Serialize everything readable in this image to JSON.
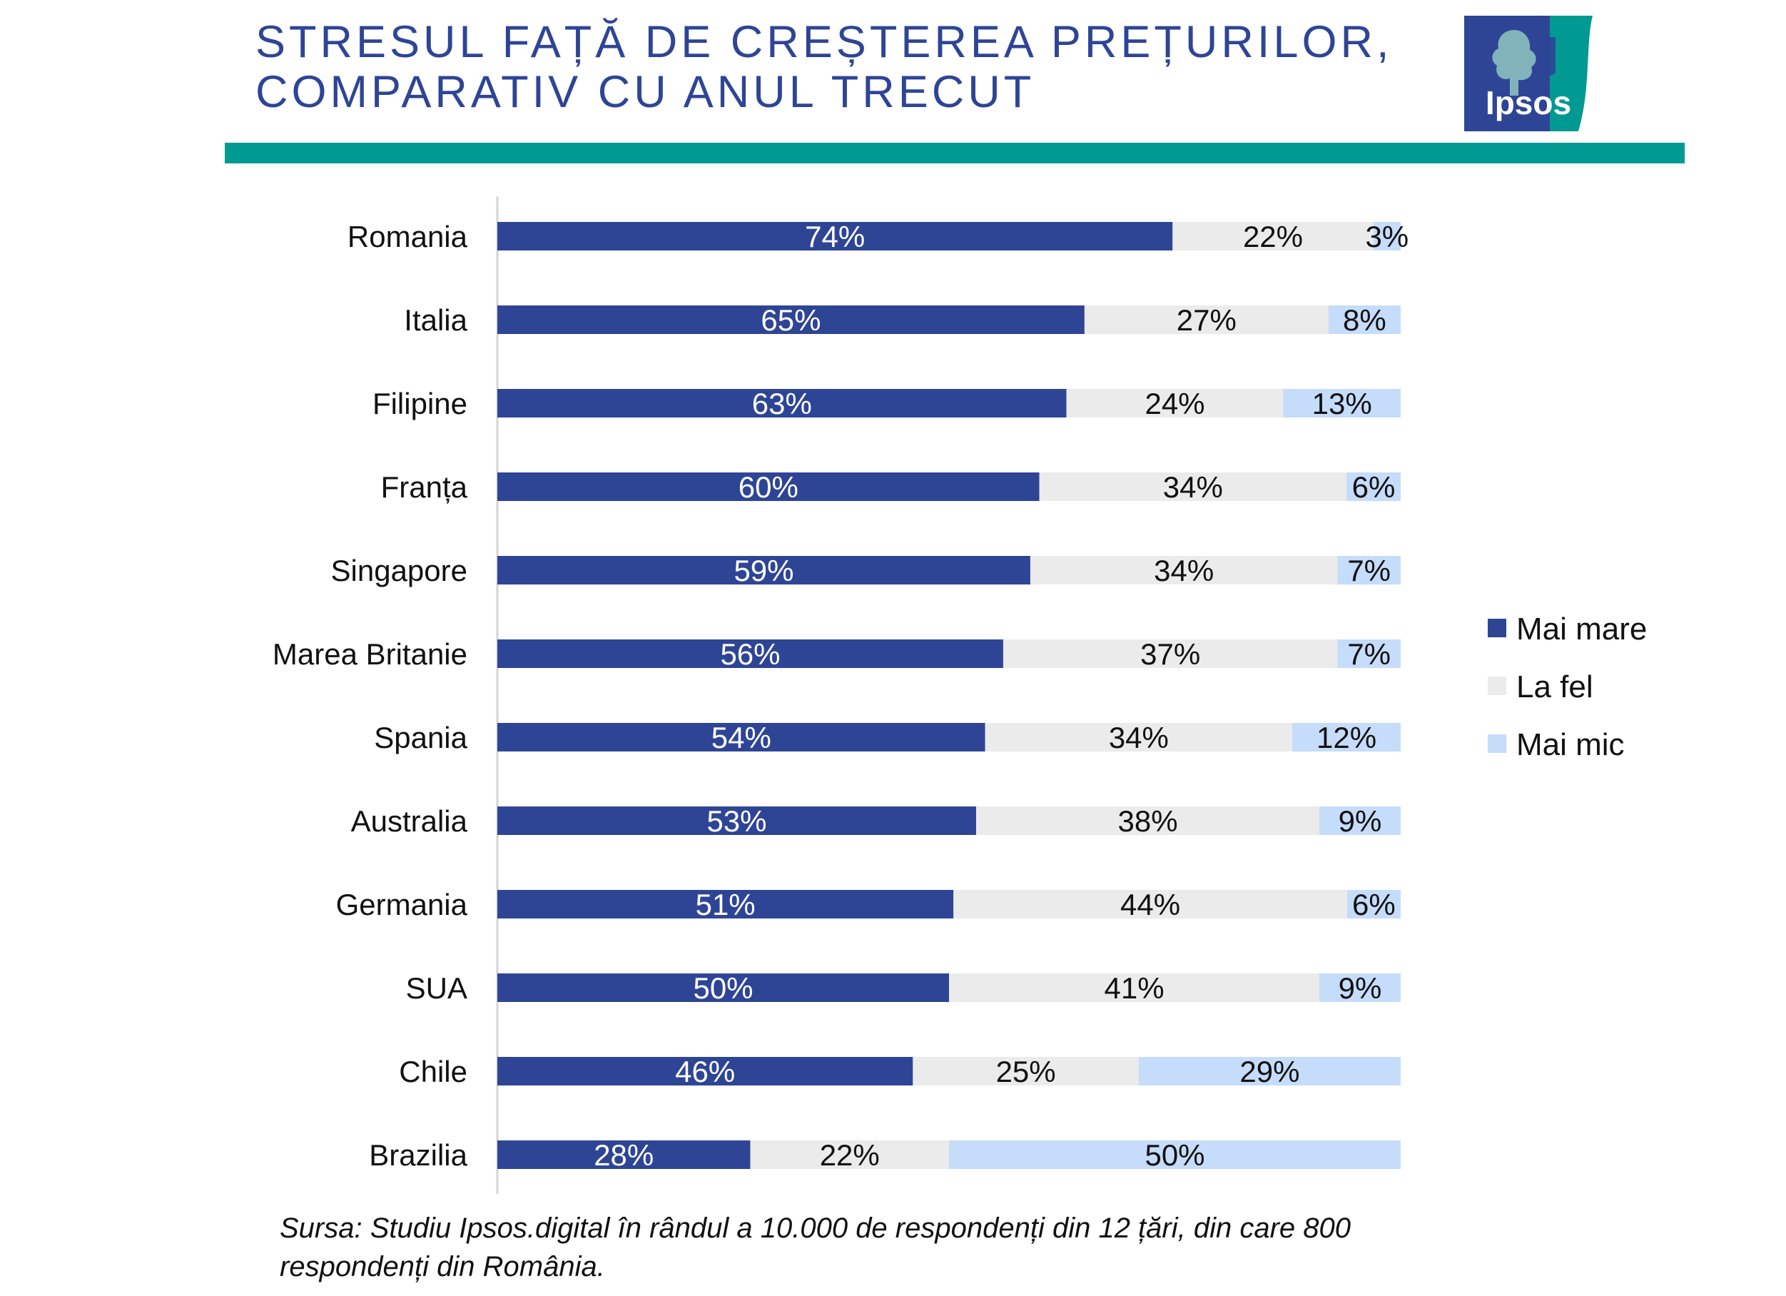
{
  "header": {
    "title_line1": "STRESUL FAȚĂ DE CREȘTEREA PREȚURILOR,",
    "title_line2": "COMPARATIV CU ANUL TRECUT",
    "logo_text": "Ipsos",
    "rule_color": "#009a93",
    "title_color": "#2e4596"
  },
  "chart_data": {
    "type": "bar",
    "orientation": "horizontal",
    "stacked": true,
    "categories": [
      "Romania",
      "Italia",
      "Filipine",
      "Franța",
      "Singapore",
      "Marea Britanie",
      "Spania",
      "Australia",
      "Germania",
      "SUA",
      "Chile",
      "Brazilia"
    ],
    "series": [
      {
        "name": "Mai mare",
        "color": "#2e4596",
        "values": [
          74,
          65,
          63,
          60,
          59,
          56,
          54,
          53,
          51,
          50,
          46,
          28
        ]
      },
      {
        "name": "La fel",
        "color": "#ebebeb",
        "values": [
          22,
          27,
          24,
          34,
          34,
          37,
          34,
          38,
          44,
          41,
          25,
          22
        ]
      },
      {
        "name": "Mai mic",
        "color": "#c5dcfa",
        "values": [
          3,
          8,
          13,
          6,
          7,
          7,
          12,
          9,
          6,
          9,
          29,
          50
        ]
      }
    ],
    "value_format": "%",
    "grid": false,
    "legend_position": "right"
  },
  "source": {
    "line1": "Sursa:  Studiu Ipsos.digital în rândul a 10.000 de respondenți din 12 țări, din care 800",
    "line2": "respondenți din România."
  }
}
